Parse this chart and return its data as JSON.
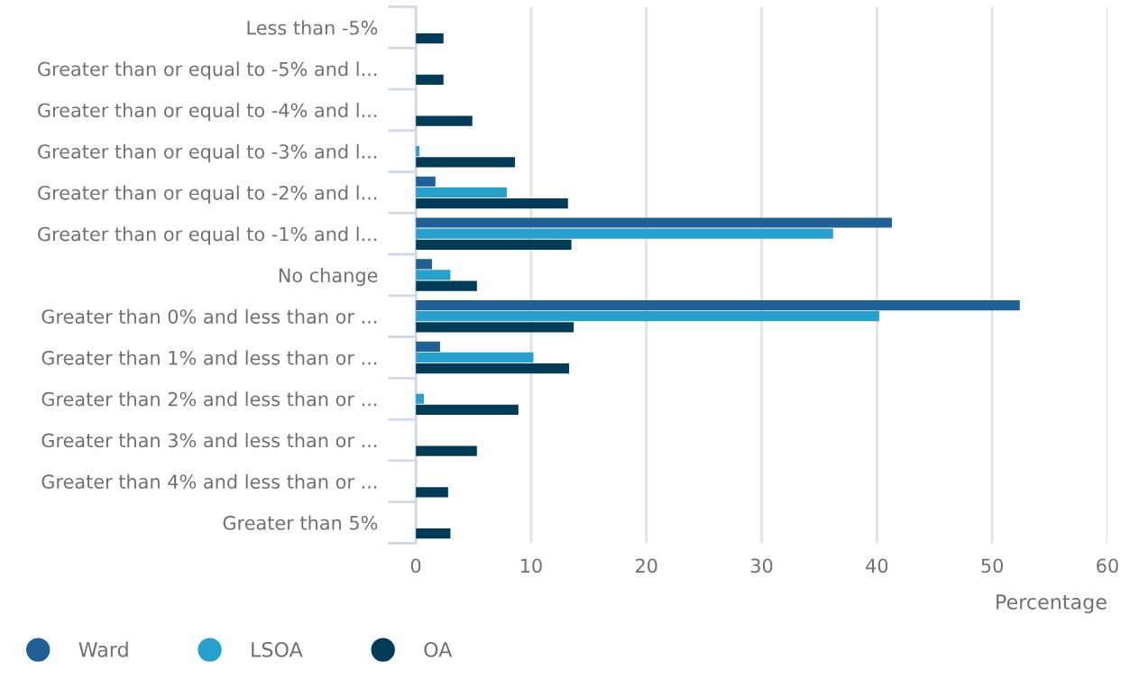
{
  "chart_data": {
    "type": "bar",
    "orientation": "horizontal",
    "xlabel": "Percentage",
    "categories": [
      "Less than -5%",
      "Greater than or equal to -5% and l...",
      "Greater than or equal to -4% and l...",
      "Greater than or equal to -3% and l...",
      "Greater than or equal to -2% and l...",
      "Greater than or equal to -1% and l...",
      "No change",
      "Greater than 0% and less than or ...",
      "Greater than 1% and less than or ...",
      "Greater than 2% and less than or ...",
      "Greater than 3% and less than or ...",
      "Greater than 4% and less than or ...",
      "Greater than 5%"
    ],
    "series": [
      {
        "name": "Ward",
        "color": "#206095",
        "values": [
          0,
          0,
          0,
          0,
          1.7,
          41.3,
          1.4,
          52.4,
          2.1,
          0,
          0,
          0,
          0
        ]
      },
      {
        "name": "LSOA",
        "color": "#27a0cc",
        "values": [
          0,
          0,
          0,
          0.3,
          7.9,
          36.2,
          3.0,
          40.2,
          10.2,
          0.7,
          0,
          0,
          0
        ]
      },
      {
        "name": "OA",
        "color": "#003c57",
        "values": [
          2.4,
          2.4,
          4.9,
          8.6,
          13.2,
          13.5,
          5.3,
          13.7,
          13.3,
          8.9,
          5.3,
          2.8,
          3.0
        ]
      }
    ],
    "xlim": [
      0,
      60
    ],
    "xticks": [
      0,
      10,
      20,
      30,
      40,
      50,
      60
    ],
    "grid": "x",
    "legend": "bottom left"
  }
}
